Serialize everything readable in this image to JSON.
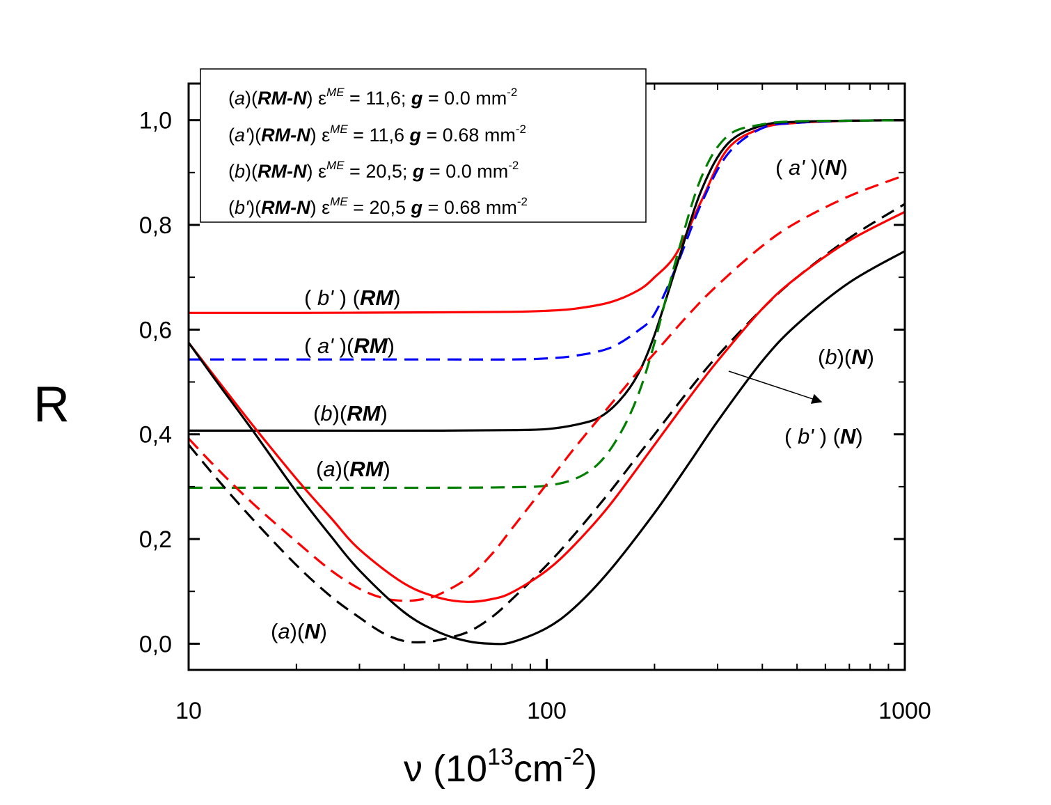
{
  "chart_data": {
    "type": "line",
    "xlabel": {
      "symbol": "ν",
      "open": " (10",
      "exp": "13",
      "unit": "cm",
      "unit_exp": "-2",
      "close": ")"
    },
    "ylabel": "R",
    "x_scale": "log",
    "xlim": [
      10,
      1000
    ],
    "ylim": [
      -0.05,
      1.07
    ],
    "x_ticks": [
      {
        "value": 10,
        "label": "10"
      },
      {
        "value": 100,
        "label": "100"
      },
      {
        "value": 1000,
        "label": "1000"
      }
    ],
    "y_ticks": [
      {
        "value": 0.0,
        "label": "0,0"
      },
      {
        "value": 0.2,
        "label": "0,2"
      },
      {
        "value": 0.4,
        "label": "0,4"
      },
      {
        "value": 0.6,
        "label": "0,6"
      },
      {
        "value": 0.8,
        "label": "0,8"
      },
      {
        "value": 1.0,
        "label": "1,0"
      }
    ],
    "legend": {
      "position": "top-left",
      "entries": [
        {
          "id": "a",
          "case": "a",
          "prime": false,
          "model": "RM-N",
          "eps": "ME",
          "sep": ";",
          "eps_value": "11,6",
          "g_value": "0.0",
          "unit": "mm",
          "unit_exp": "-2"
        },
        {
          "id": "ap",
          "case": "a'",
          "prime": true,
          "model": "RM-N",
          "eps": "ME",
          "sep": "",
          "eps_value": "11,6",
          "g_value": "0.68",
          "unit": "mm",
          "unit_exp": "-2"
        },
        {
          "id": "b",
          "case": "b",
          "prime": false,
          "model": "RM-N",
          "eps": "ME",
          "sep": ";",
          "eps_value": "20,5",
          "g_value": "0.0",
          "unit": "mm",
          "unit_exp": "-2"
        },
        {
          "id": "bp",
          "case": "b'",
          "prime": true,
          "model": "RM-N",
          "eps": "ME",
          "sep": "",
          "eps_value": "20,5",
          "g_value": "0.68",
          "unit": "mm",
          "unit_exp": "-2"
        }
      ]
    },
    "series": [
      {
        "name": "(b')(RM)",
        "color": "#ff0000",
        "style": "solid",
        "x": [
          10,
          20,
          50,
          80,
          100,
          120,
          150,
          180,
          200,
          230,
          270,
          320,
          400,
          500,
          700,
          1000
        ],
        "y": [
          0.632,
          0.632,
          0.633,
          0.634,
          0.636,
          0.64,
          0.652,
          0.675,
          0.7,
          0.745,
          0.845,
          0.945,
          0.985,
          0.995,
          0.999,
          1.0
        ]
      },
      {
        "name": "(a')(RM)",
        "color": "#0000ff",
        "style": "dashed",
        "x": [
          10,
          20,
          50,
          80,
          100,
          120,
          150,
          180,
          200,
          230,
          270,
          320,
          400,
          500,
          700,
          1000
        ],
        "y": [
          0.543,
          0.543,
          0.543,
          0.543,
          0.545,
          0.55,
          0.565,
          0.598,
          0.63,
          0.72,
          0.84,
          0.935,
          0.985,
          0.995,
          0.999,
          1.0
        ]
      },
      {
        "name": "(b)(RM)",
        "color": "#000000",
        "style": "solid",
        "x": [
          10,
          20,
          50,
          80,
          100,
          120,
          140,
          160,
          180,
          200,
          230,
          270,
          320,
          400,
          500,
          700,
          1000
        ],
        "y": [
          0.407,
          0.407,
          0.407,
          0.408,
          0.41,
          0.418,
          0.432,
          0.465,
          0.515,
          0.59,
          0.72,
          0.865,
          0.955,
          0.99,
          0.997,
          0.999,
          1.0
        ]
      },
      {
        "name": "(a)(RM)",
        "color": "#007f00",
        "style": "dashed",
        "x": [
          10,
          20,
          50,
          80,
          100,
          120,
          140,
          160,
          180,
          200,
          230,
          270,
          320,
          400,
          500,
          700,
          1000
        ],
        "y": [
          0.298,
          0.298,
          0.298,
          0.299,
          0.302,
          0.315,
          0.345,
          0.4,
          0.475,
          0.575,
          0.735,
          0.89,
          0.97,
          0.992,
          0.998,
          0.999,
          1.0
        ]
      },
      {
        "name": "(a')(N)",
        "color": "#ff0000",
        "style": "dashed",
        "x": [
          10,
          12,
          15,
          20,
          25,
          30,
          35,
          40,
          45,
          50,
          60,
          70,
          80,
          100,
          120,
          150,
          180,
          200,
          250,
          300,
          400,
          500,
          700,
          1000
        ],
        "y": [
          0.392,
          0.335,
          0.27,
          0.195,
          0.14,
          0.105,
          0.087,
          0.082,
          0.085,
          0.094,
          0.125,
          0.17,
          0.22,
          0.305,
          0.375,
          0.455,
          0.52,
          0.555,
          0.63,
          0.685,
          0.76,
          0.805,
          0.855,
          0.895
        ]
      },
      {
        "name": "(a)(N)",
        "color": "#000000",
        "style": "dashed",
        "x": [
          10,
          12,
          15,
          20,
          25,
          30,
          35,
          40,
          45,
          50,
          60,
          70,
          80,
          100,
          120,
          150,
          180,
          200,
          250,
          300,
          400,
          500,
          700,
          1000
        ],
        "y": [
          0.38,
          0.315,
          0.24,
          0.15,
          0.09,
          0.05,
          0.02,
          0.005,
          0.003,
          0.007,
          0.022,
          0.05,
          0.085,
          0.15,
          0.21,
          0.29,
          0.36,
          0.4,
          0.485,
          0.55,
          0.64,
          0.7,
          0.775,
          0.84
        ]
      },
      {
        "name": "(b')(N)",
        "color": "#ff0000",
        "style": "solid",
        "x": [
          10,
          12,
          15,
          20,
          25,
          30,
          40,
          50,
          60,
          70,
          80,
          100,
          120,
          150,
          200,
          250,
          300,
          400,
          500,
          700,
          1000
        ],
        "y": [
          0.575,
          0.505,
          0.42,
          0.315,
          0.24,
          0.18,
          0.115,
          0.088,
          0.08,
          0.085,
          0.098,
          0.14,
          0.19,
          0.265,
          0.38,
          0.47,
          0.54,
          0.64,
          0.7,
          0.77,
          0.825
        ]
      },
      {
        "name": "(b)(N)",
        "color": "#000000",
        "style": "solid",
        "x": [
          10,
          12,
          15,
          20,
          25,
          30,
          40,
          50,
          60,
          70,
          80,
          100,
          120,
          150,
          200,
          250,
          300,
          400,
          500,
          700,
          1000
        ],
        "y": [
          0.575,
          0.5,
          0.41,
          0.29,
          0.205,
          0.14,
          0.06,
          0.022,
          0.005,
          0.0,
          0.003,
          0.03,
          0.07,
          0.14,
          0.25,
          0.345,
          0.425,
          0.54,
          0.61,
          0.69,
          0.75
        ]
      }
    ],
    "annotations": [
      {
        "id": "bp-rm",
        "case": "b'",
        "model": "RM",
        "prime": true
      },
      {
        "id": "ap-rm",
        "case": "a'",
        "model": "RM",
        "prime": true
      },
      {
        "id": "b-rm",
        "case": "b",
        "model": "RM",
        "prime": false
      },
      {
        "id": "a-rm",
        "case": "a",
        "model": "RM",
        "prime": false
      },
      {
        "id": "ap-n",
        "case": "a'",
        "model": "N",
        "prime": true
      },
      {
        "id": "b-n",
        "case": "b",
        "model": "N",
        "prime": false
      },
      {
        "id": "bp-n",
        "case": "b'",
        "model": "N",
        "prime": true
      },
      {
        "id": "a-n",
        "case": "a",
        "model": "N",
        "prime": false
      }
    ]
  }
}
